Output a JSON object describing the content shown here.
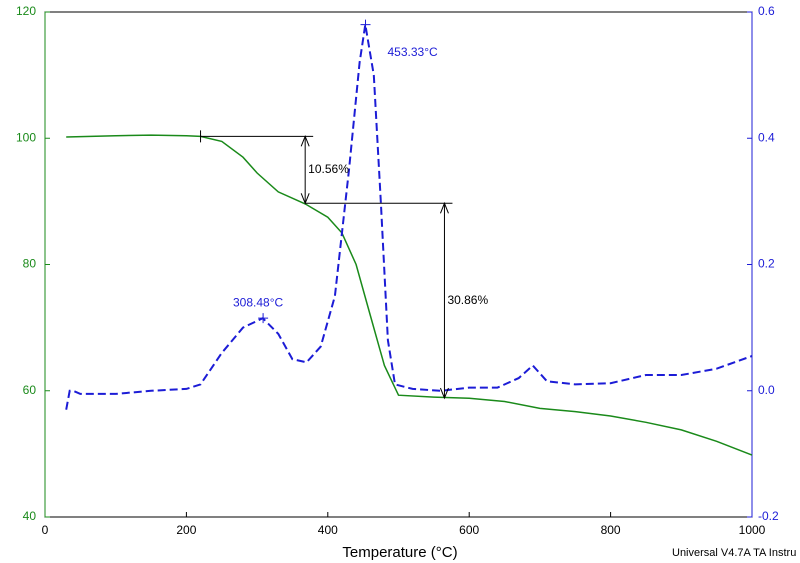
{
  "chart_data": {
    "type": "line",
    "x_label": "Temperature (°C)",
    "footer": "Universal V4.7A TA Instru",
    "xlim": [
      0,
      1000
    ],
    "xticks": [
      0,
      200,
      400,
      600,
      800,
      1000
    ],
    "ylim": [
      40,
      120
    ],
    "yticks": [
      40,
      60,
      80,
      100,
      120
    ],
    "y2lim": [
      -0.2,
      0.6
    ],
    "y2ticks": [
      -0.2,
      {
        "value": 0,
        "label": "0.0"
      },
      0.2,
      0.4,
      0.6
    ],
    "y_color": "#1a8a1a",
    "y2_color": "#1c1cd6",
    "series": [
      {
        "color": "#1a8a1a",
        "dashed": false,
        "axis": "y",
        "x": [
          30,
          100,
          150,
          200,
          220,
          250,
          280,
          300,
          330,
          368,
          400,
          420,
          440,
          460,
          480,
          500,
          550,
          600,
          650,
          700,
          750,
          800,
          850,
          900,
          950,
          1000
        ],
        "values": [
          100.2,
          100.4,
          100.5,
          100.4,
          100.3,
          99.5,
          97,
          94.5,
          91.5,
          89.6,
          87.5,
          85,
          80,
          72,
          64,
          59.3,
          59.0,
          58.8,
          58.3,
          57.2,
          56.7,
          56.0,
          55.0,
          53.8,
          52.0,
          49.8
        ]
      },
      {
        "color": "#1c1cd6",
        "dashed": true,
        "axis": "y2",
        "x": [
          30,
          35,
          40,
          50,
          100,
          150,
          200,
          220,
          250,
          280,
          308,
          330,
          350,
          370,
          390,
          410,
          430,
          445,
          453,
          465,
          475,
          485,
          495,
          520,
          560,
          600,
          640,
          670,
          690,
          710,
          750,
          800,
          850,
          900,
          950,
          1000
        ],
        "values": [
          -0.03,
          0.0,
          0.0,
          -0.005,
          -0.005,
          0.0,
          0.003,
          0.01,
          0.06,
          0.1,
          0.115,
          0.09,
          0.05,
          0.045,
          0.07,
          0.15,
          0.35,
          0.52,
          0.58,
          0.5,
          0.3,
          0.08,
          0.01,
          0.003,
          0.0,
          0.005,
          0.005,
          0.02,
          0.04,
          0.015,
          0.01,
          0.012,
          0.025,
          0.025,
          0.035,
          0.055
        ]
      }
    ],
    "peaks": [
      {
        "label": "453.33°C",
        "x": 453.33,
        "y": 0.58
      },
      {
        "label": "308.48°C",
        "x": 308.48,
        "y": 0.115
      }
    ],
    "steps": [
      {
        "label": "10.56%",
        "start": 220,
        "x": 368,
        "from": 100.3,
        "to": 89.7
      },
      {
        "label": "30.86%",
        "start": 368,
        "x": 565,
        "from": 89.7,
        "to": 58.84
      }
    ]
  }
}
